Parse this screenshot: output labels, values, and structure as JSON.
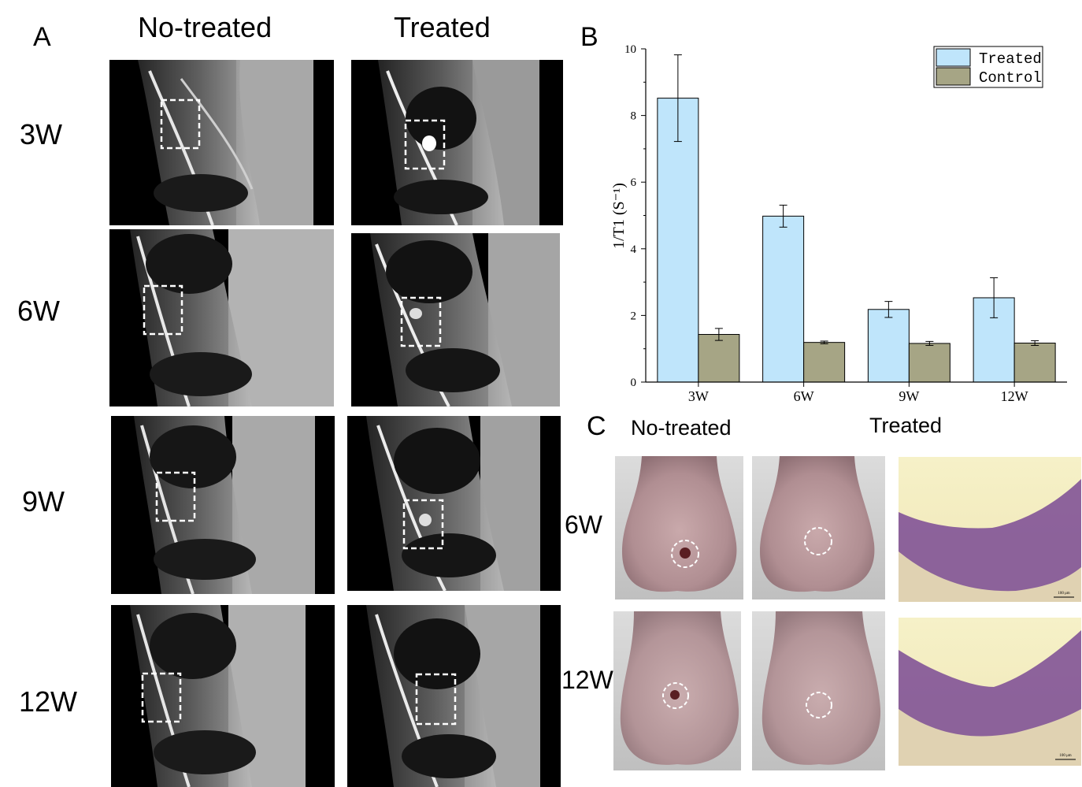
{
  "panel_a": {
    "letter": "A",
    "columns": [
      "No-treated",
      "Treated"
    ],
    "rows": [
      "3W",
      "6W",
      "9W",
      "12W"
    ]
  },
  "panel_b": {
    "letter": "B"
  },
  "panel_c": {
    "letter": "C",
    "columns": [
      "No-treated",
      "Treated"
    ],
    "rows": [
      "6W",
      "12W"
    ],
    "scale_label": "100 μm"
  },
  "colors": {
    "treated": "#bfe5fb",
    "control": "#a6a585",
    "mri_bg": "#000000",
    "box_outline": "#ffffff",
    "specimen": "#b89a9a",
    "histology_stain": "#7a4a94",
    "histology_bg": "#f3ecc2"
  },
  "chart_data": {
    "type": "bar",
    "categories": [
      "3W",
      "6W",
      "9W",
      "12W"
    ],
    "series": [
      {
        "name": "Treated",
        "values": [
          8.52,
          4.98,
          2.18,
          2.53
        ],
        "errors": [
          1.3,
          0.33,
          0.24,
          0.6
        ]
      },
      {
        "name": "Control",
        "values": [
          1.43,
          1.19,
          1.16,
          1.17
        ],
        "errors": [
          0.18,
          0.04,
          0.06,
          0.07
        ]
      }
    ],
    "ylabel": "1/T1 (S⁻¹)",
    "ylim": [
      0,
      10
    ],
    "yticks": [
      "0",
      "2",
      "4",
      "6",
      "8",
      "10"
    ],
    "legend_position": "top-right",
    "grid": false
  }
}
